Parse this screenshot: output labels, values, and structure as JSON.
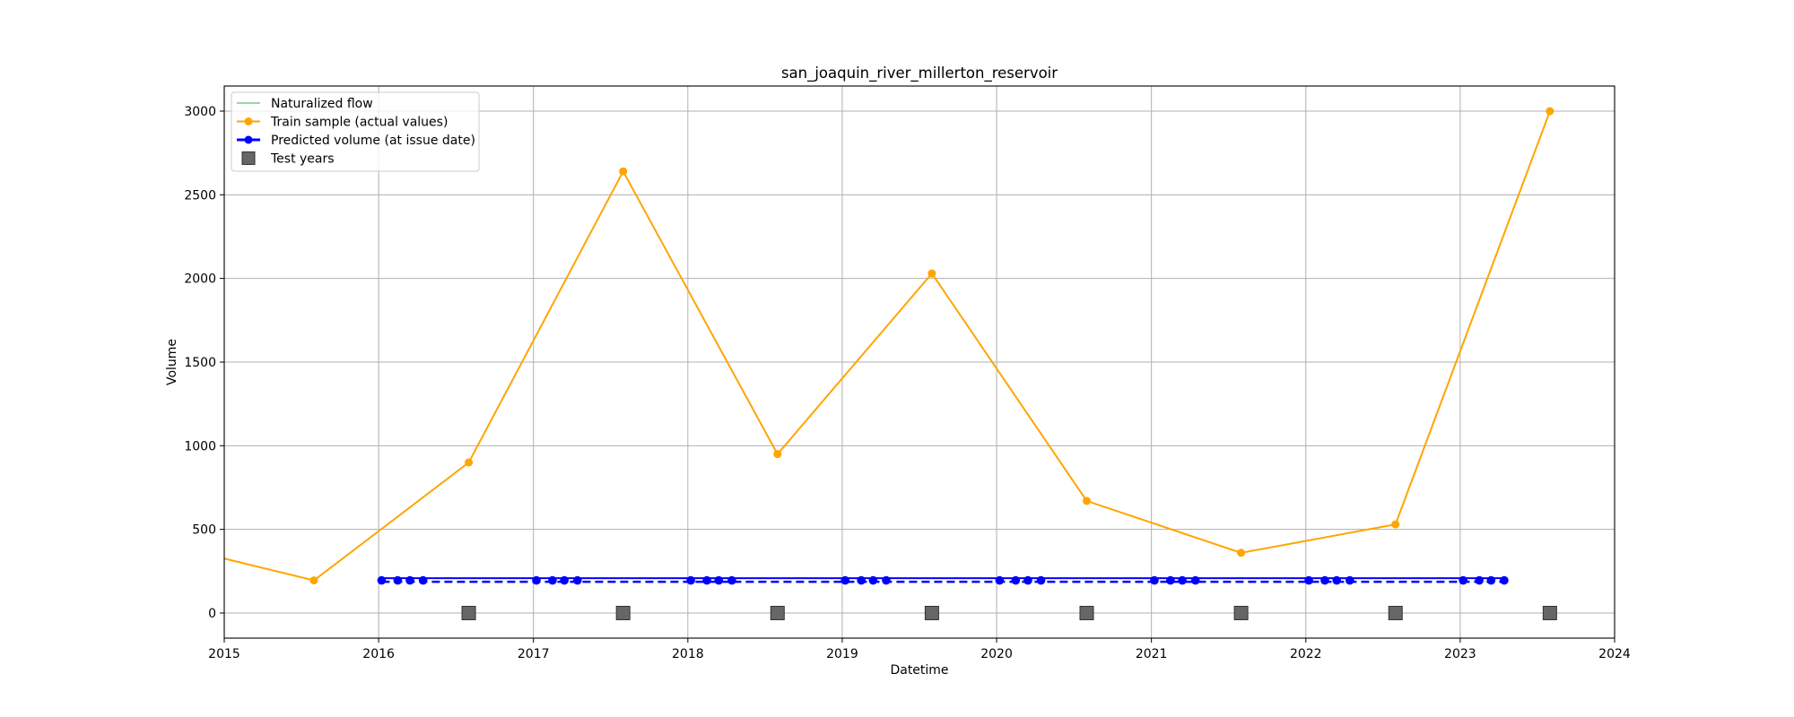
{
  "chart_data": {
    "type": "line",
    "title": "san_joaquin_river_millerton_reservoir",
    "xlabel": "Datetime",
    "ylabel": "Volume",
    "xlim": [
      "2015-01-01",
      "2024-01-01"
    ],
    "ylim": [
      -150,
      3150
    ],
    "x_ticks": [
      "2015",
      "2016",
      "2017",
      "2018",
      "2019",
      "2020",
      "2021",
      "2022",
      "2023",
      "2024"
    ],
    "y_ticks": [
      0,
      500,
      1000,
      1500,
      2000,
      2500,
      3000
    ],
    "grid": true,
    "legend_position": "top-left",
    "legend": [
      {
        "label": "Naturalized flow",
        "color": "#7fc97f",
        "marker": "none"
      },
      {
        "label": "Train sample (actual values)",
        "color": "#ffa500",
        "marker": "circle"
      },
      {
        "label": "Predicted volume (at issue date)",
        "color": "#0000ff",
        "marker": "circle"
      },
      {
        "label": "Test years",
        "color": "#666666",
        "marker": "square"
      }
    ],
    "series": [
      {
        "name": "Train sample (actual values)",
        "color": "#ffa500",
        "points": [
          [
            "2014-08-01",
            420
          ],
          [
            "2015-08-01",
            195
          ],
          [
            "2016-08-01",
            900
          ],
          [
            "2017-08-01",
            2640
          ],
          [
            "2018-08-01",
            950
          ],
          [
            "2019-08-01",
            2030
          ],
          [
            "2020-08-01",
            670
          ],
          [
            "2021-08-01",
            360
          ],
          [
            "2022-08-01",
            530
          ],
          [
            "2023-08-01",
            3000
          ]
        ]
      },
      {
        "name": "Predicted volume (at issue date)",
        "color": "#0000ff",
        "value": 195,
        "dates": [
          "2016-01-08",
          "2016-02-15",
          "2016-03-15",
          "2016-04-15",
          "2017-01-08",
          "2017-02-15",
          "2017-03-15",
          "2017-04-15",
          "2018-01-08",
          "2018-02-15",
          "2018-03-15",
          "2018-04-15",
          "2019-01-08",
          "2019-02-15",
          "2019-03-15",
          "2019-04-15",
          "2020-01-08",
          "2020-02-15",
          "2020-03-15",
          "2020-04-15",
          "2021-01-08",
          "2021-02-15",
          "2021-03-15",
          "2021-04-15",
          "2022-01-08",
          "2022-02-15",
          "2022-03-15",
          "2022-04-15",
          "2023-01-08",
          "2023-02-15",
          "2023-03-15",
          "2023-04-15"
        ]
      },
      {
        "name": "Test years",
        "color": "#666666",
        "value": 0,
        "dates": [
          "2016-08-01",
          "2017-08-01",
          "2018-08-01",
          "2019-08-01",
          "2020-08-01",
          "2021-08-01",
          "2022-08-01",
          "2023-08-01"
        ]
      }
    ]
  }
}
